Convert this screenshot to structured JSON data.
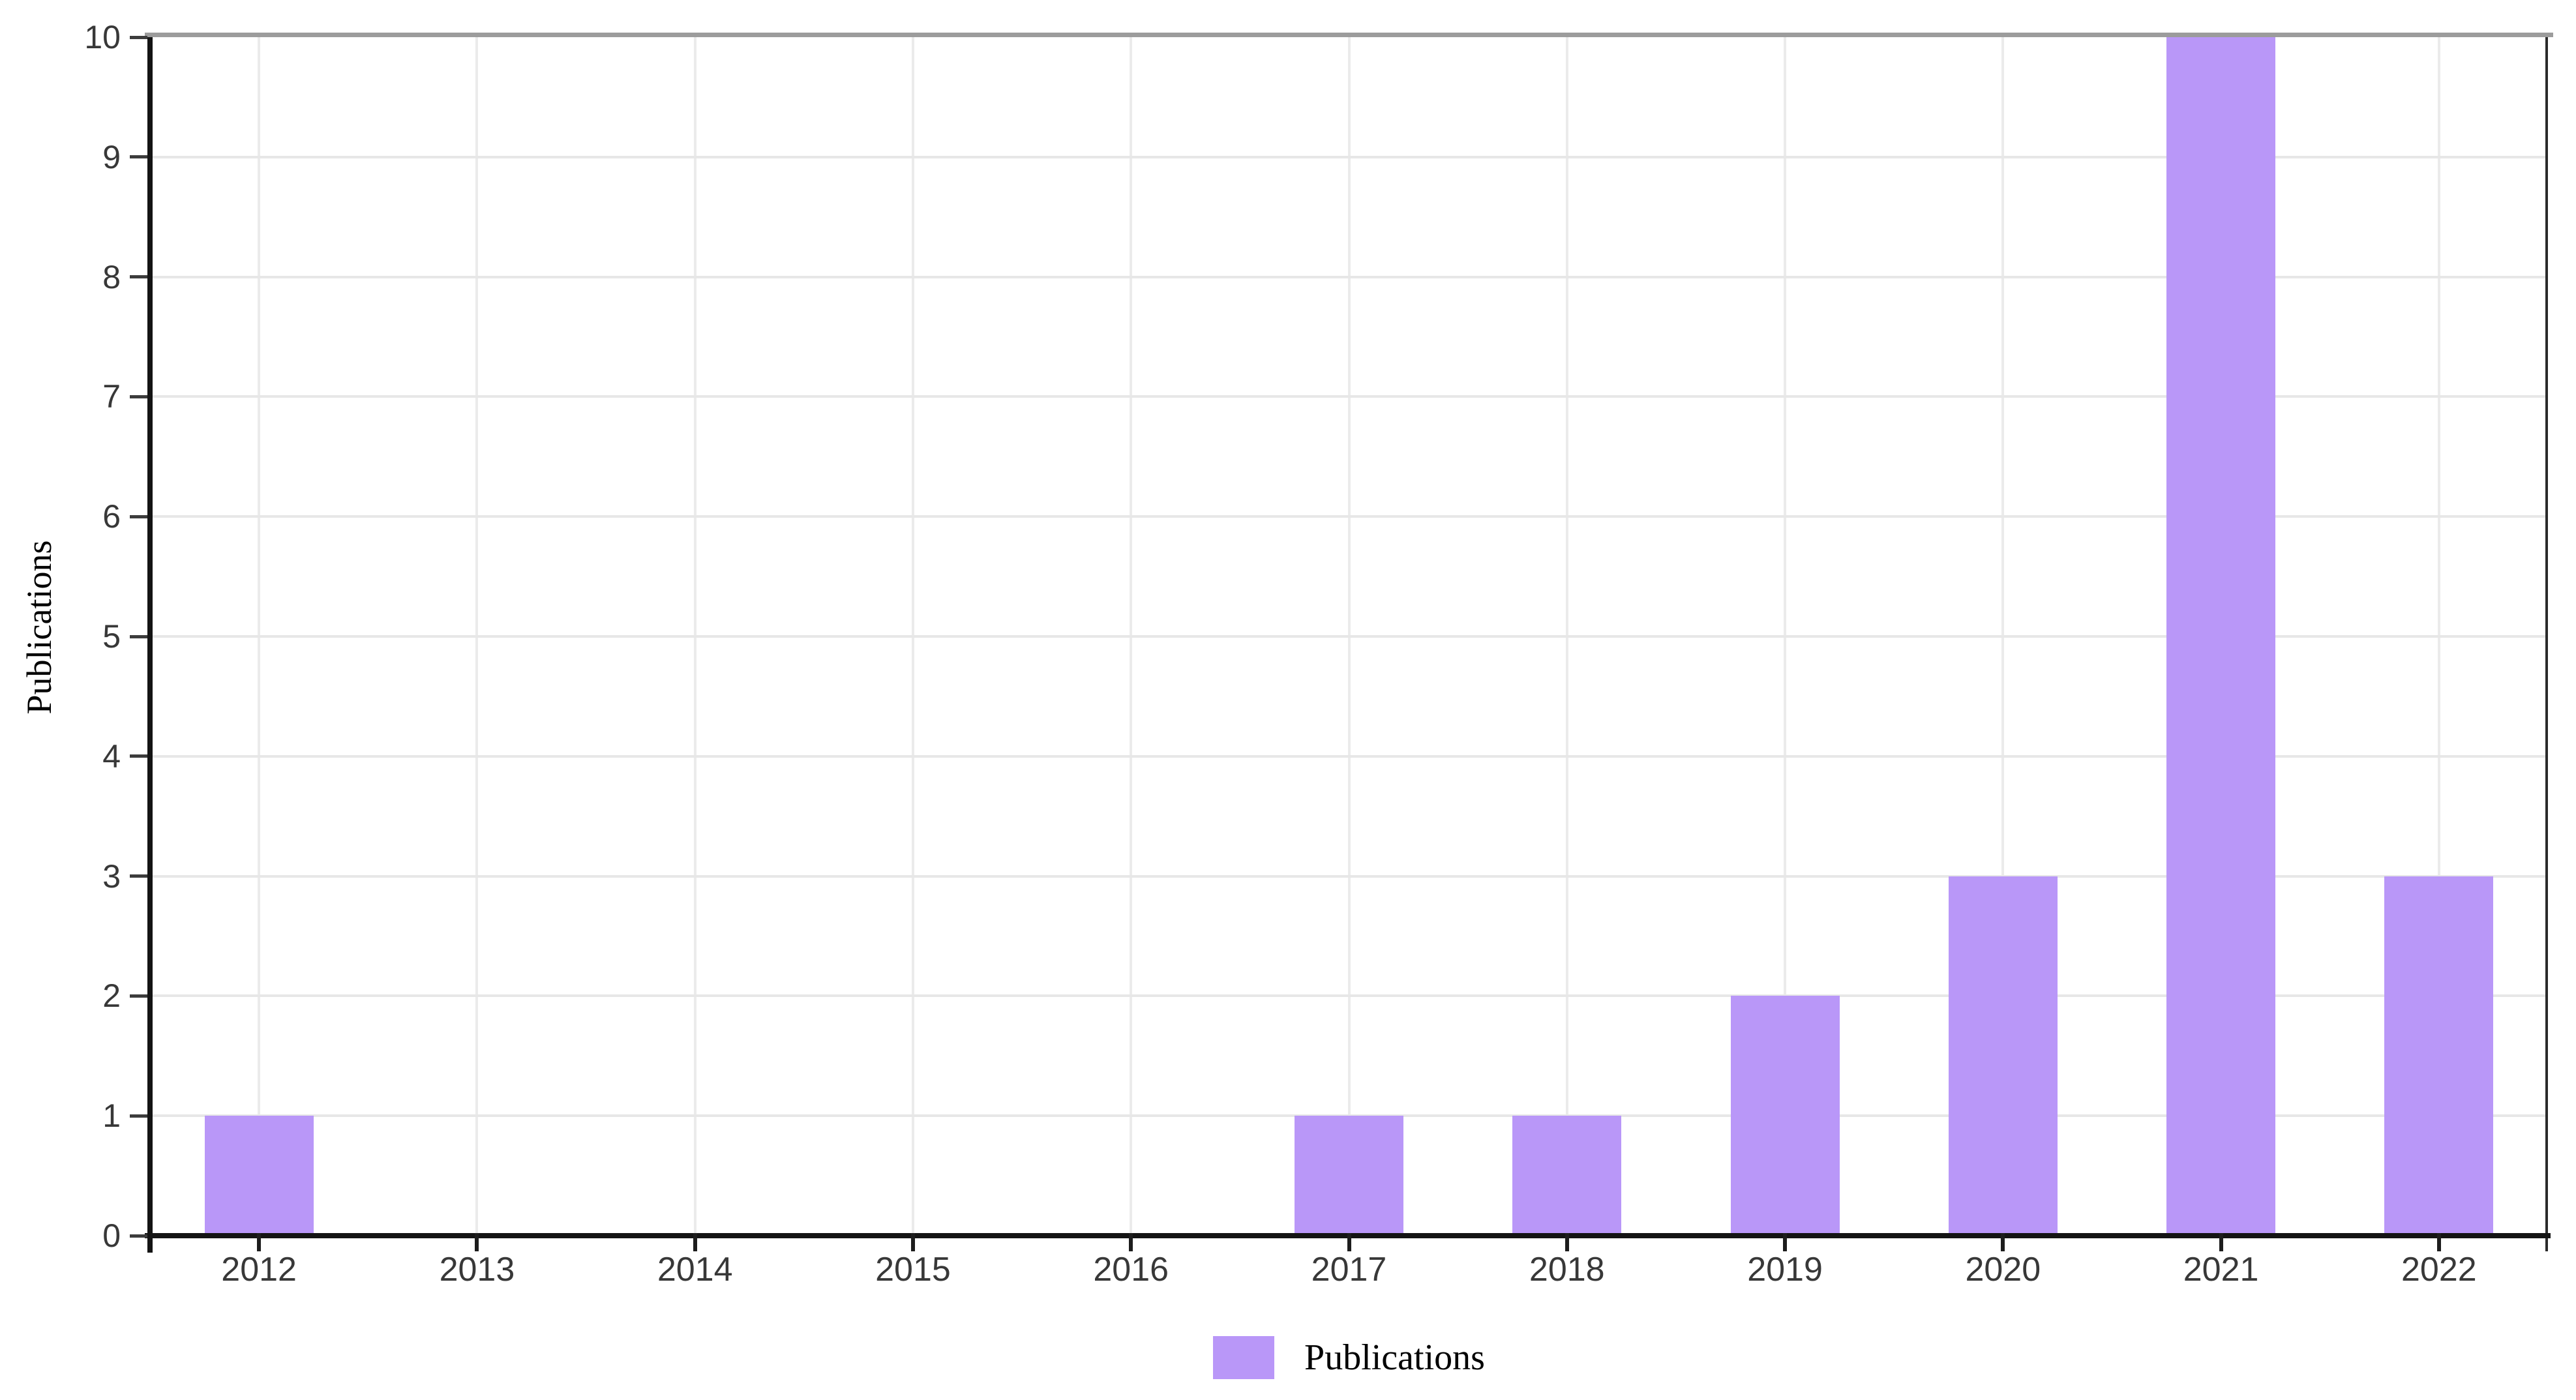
{
  "chart_data": {
    "type": "bar",
    "title": "",
    "categories": [
      "2012",
      "2013",
      "2014",
      "2015",
      "2016",
      "2017",
      "2018",
      "2019",
      "2020",
      "2021",
      "2022"
    ],
    "series": [
      {
        "name": "Publications",
        "values": [
          1,
          0,
          0,
          0,
          0,
          1,
          1,
          2,
          3,
          10,
          3
        ]
      }
    ],
    "xlabel": "",
    "ylabel": "Publications",
    "ylim": [
      0,
      10
    ],
    "ytick_step": 1,
    "ytick_labels": [
      "0",
      "1",
      "2",
      "3",
      "4",
      "5",
      "6",
      "7",
      "8",
      "9",
      "10"
    ],
    "grid": "both",
    "legend_position": "bottom-center",
    "bar_color": "#b997f8"
  },
  "legend": {
    "items": [
      {
        "label": "Publications",
        "swatch_color": "#b997f8"
      }
    ]
  },
  "colors": {
    "bar": "#b997f8",
    "gridline_horizontal": "#e7e7e7",
    "gridline_vertical": "#ebebeb",
    "axis": "#141414",
    "plot_border_top": "#9c9c9c",
    "plot_border_right": "#2b2b2b",
    "tick_label": "#383838",
    "background": "#ffffff"
  }
}
